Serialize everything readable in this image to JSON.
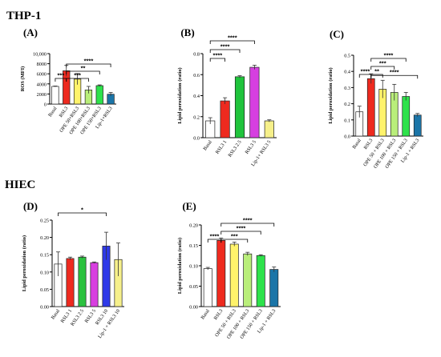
{
  "titles": {
    "top": "THP-1",
    "bottom": "HIEC"
  },
  "chart_data": [
    {
      "id": "A",
      "panel_label": "(A)",
      "type": "bar",
      "categories": [
        "Basal",
        "RSL3",
        "OPE 50+RSL3",
        "OPE 100+RSL3",
        "OPE 150+RSL3",
        "Lip-1+RSL3"
      ],
      "values": [
        3500,
        6600,
        4950,
        2800,
        3650,
        1950
      ],
      "errors": [
        80,
        1100,
        1100,
        700,
        150,
        350
      ],
      "colors": [
        "#ffffff",
        "#ee2a1f",
        "#fff36b",
        "#b9ee7a",
        "#2ee24b",
        "#1b75a8"
      ],
      "ylabel": "ROS (MFI)",
      "ylim": [
        0,
        10000
      ],
      "yticks": [
        0,
        2000,
        4000,
        6000,
        8000,
        10000
      ],
      "ytick_labels": [
        "0",
        "2000",
        "4000",
        "6000",
        "8000",
        "10,000"
      ],
      "significance": [
        {
          "from": 0,
          "to": 1,
          "label": "***",
          "level": 0
        },
        {
          "from": 1,
          "to": 3,
          "label": "***",
          "level": 0
        },
        {
          "from": 1,
          "to": 4,
          "label": "**",
          "level": 1
        },
        {
          "from": 1,
          "to": 5,
          "label": "****",
          "level": 2
        }
      ]
    },
    {
      "id": "B",
      "panel_label": "(B)",
      "type": "bar",
      "categories": [
        "Basal",
        "RSL3 1",
        "RSL3 2.5",
        "RSL3 5",
        "Lip-1+ RSL3 5"
      ],
      "values": [
        0.16,
        0.35,
        0.58,
        0.67,
        0.16
      ],
      "errors": [
        0.03,
        0.03,
        0.01,
        0.02,
        0.01
      ],
      "colors": [
        "#ffffff",
        "#ee2a1f",
        "#1fc43b",
        "#d63fe0",
        "#f6f08a"
      ],
      "ylabel": "Lipid peroxidation (ratio)",
      "ylim": [
        0,
        0.8
      ],
      "yticks": [
        0,
        0.2,
        0.4,
        0.6,
        0.8
      ],
      "ytick_labels": [
        "0.0",
        "0.2",
        "0.4",
        "0.6",
        "0.8"
      ],
      "significance": [
        {
          "from": 0,
          "to": 1,
          "label": "****",
          "level": 0
        },
        {
          "from": 0,
          "to": 2,
          "label": "****",
          "level": 1
        },
        {
          "from": 0,
          "to": 3,
          "label": "****",
          "level": 2
        }
      ]
    },
    {
      "id": "C",
      "panel_label": "(C)",
      "type": "bar",
      "categories": [
        "Basal",
        "RSL3",
        "OPE 50 + RSL3",
        "OPE 100 + RSL3",
        "OPE 150 + RSL3",
        "Lip-1 + RSL3"
      ],
      "values": [
        0.15,
        0.355,
        0.29,
        0.27,
        0.245,
        0.13
      ],
      "errors": [
        0.035,
        0.03,
        0.055,
        0.05,
        0.025,
        0.01
      ],
      "colors": [
        "#ffffff",
        "#ee2a1f",
        "#fff36b",
        "#b9ee7a",
        "#2ee24b",
        "#1b75a8"
      ],
      "ylabel": "Lipid peroxidation (ratio)",
      "ylim": [
        0,
        0.5
      ],
      "yticks": [
        0,
        0.1,
        0.2,
        0.3,
        0.4,
        0.5
      ],
      "ytick_labels": [
        "0.0",
        "0.1",
        "0.2",
        "0.3",
        "0.4",
        "0.5"
      ],
      "significance": [
        {
          "from": 0,
          "to": 1,
          "label": "****",
          "level": 0
        },
        {
          "from": 1,
          "to": 2,
          "label": "**",
          "level": 0
        },
        {
          "from": 1,
          "to": 3,
          "label": "***",
          "level": 1
        },
        {
          "from": 1,
          "to": 4,
          "label": "****",
          "level": 2
        },
        {
          "from": 1,
          "to": 5,
          "label": "****",
          "level": 0
        }
      ]
    },
    {
      "id": "D",
      "panel_label": "(D)",
      "type": "bar",
      "categories": [
        "Basal",
        "RSL3 1",
        "RSL3 2.5",
        "RSL3 5",
        "RSL3 10",
        "Lip-1 + RSL3 10"
      ],
      "values": [
        0.123,
        0.139,
        0.143,
        0.127,
        0.175,
        0.136
      ],
      "errors": [
        0.035,
        0.004,
        0.003,
        0.002,
        0.04,
        0.048
      ],
      "colors": [
        "#ffffff",
        "#ee2a1f",
        "#2bc23f",
        "#d83fe0",
        "#2f3ae8",
        "#f6f08a"
      ],
      "ylabel": "Lipid peroxidation (ratio)",
      "ylim": [
        0,
        0.25
      ],
      "yticks": [
        0,
        0.05,
        0.1,
        0.15,
        0.2,
        0.25
      ],
      "ytick_labels": [
        "0.00",
        "0.05",
        "0.10",
        "0.15",
        "0.20",
        "0.25"
      ],
      "significance": [
        {
          "from": 0,
          "to": 4,
          "label": "*",
          "level": 0
        }
      ]
    },
    {
      "id": "E",
      "panel_label": "(E)",
      "type": "bar",
      "categories": [
        "Basal",
        "RSL3",
        "OPE 50 + RSL3",
        "OPE 100 + RSL3",
        "OPE 150 + RSL3",
        "Lip-1 + RSL3"
      ],
      "values": [
        0.093,
        0.162,
        0.153,
        0.129,
        0.125,
        0.091
      ],
      "errors": [
        0.003,
        0.006,
        0.005,
        0.004,
        0.002,
        0.006
      ],
      "colors": [
        "#ffffff",
        "#ee2a1f",
        "#fff36b",
        "#b9ee7a",
        "#2ee24b",
        "#1b75a8"
      ],
      "ylabel": "Lipid peroxidation (ratio)",
      "ylim": [
        0,
        0.2
      ],
      "yticks": [
        0,
        0.05,
        0.1,
        0.15,
        0.2
      ],
      "ytick_labels": [
        "0.00",
        "0.05",
        "0.10",
        "0.15",
        "0.20"
      ],
      "significance": [
        {
          "from": 0,
          "to": 1,
          "label": "****",
          "level": 0
        },
        {
          "from": 1,
          "to": 3,
          "label": "***",
          "level": 0
        },
        {
          "from": 1,
          "to": 4,
          "label": "****",
          "level": 1
        },
        {
          "from": 1,
          "to": 5,
          "label": "****",
          "level": 2
        }
      ]
    }
  ]
}
